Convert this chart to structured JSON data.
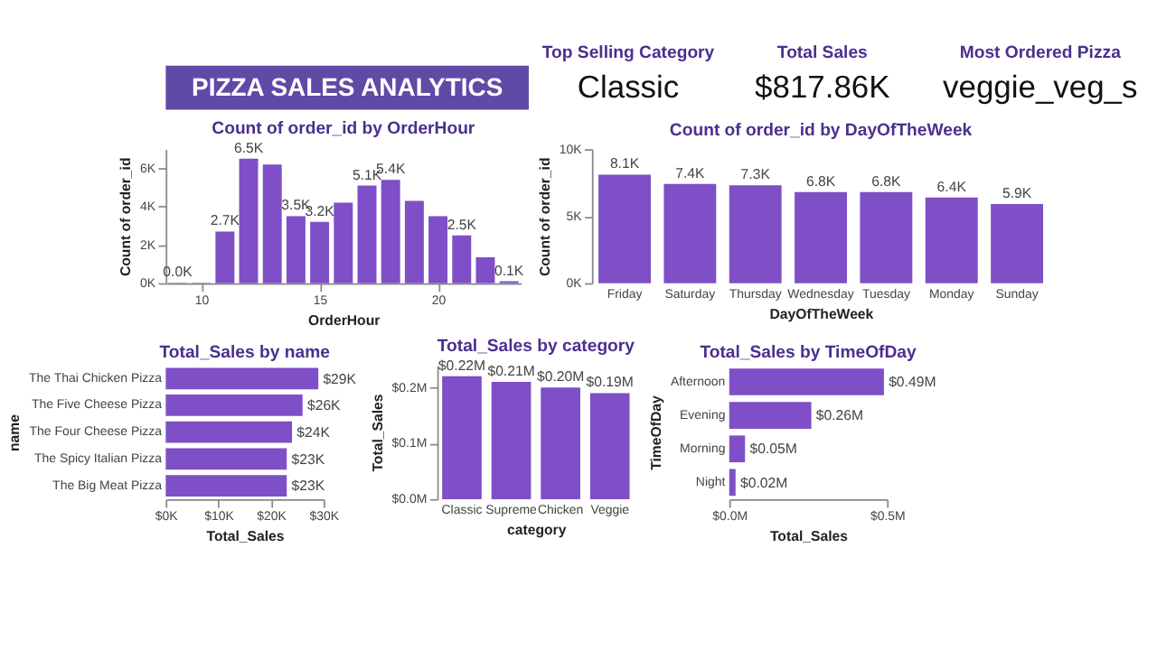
{
  "chart_data": [
    {
      "type": "other",
      "title": "PIZZA SALES ANALYTICS"
    },
    {
      "type": "other",
      "title": "Top Selling Category",
      "annotations": [
        "Classic"
      ]
    },
    {
      "type": "other",
      "title": "Total Sales",
      "annotations": [
        "$817.86K"
      ]
    },
    {
      "type": "other",
      "title": "Most Ordered Pizza",
      "annotations": [
        "veggie_veg_s"
      ]
    },
    {
      "type": "bar",
      "title": "Count of order_id by OrderHour",
      "xlabel": "OrderHour",
      "ylabel": "Count of order_id",
      "x": [
        9,
        10,
        11,
        12,
        13,
        14,
        15,
        16,
        17,
        18,
        19,
        20,
        21,
        22,
        23
      ],
      "values": [
        20,
        20,
        2700,
        6500,
        6200,
        3500,
        3200,
        4200,
        5100,
        5400,
        4300,
        3500,
        2500,
        1350,
        100
      ],
      "value_labels": [
        "0.0K",
        null,
        "2.7K",
        "6.5K",
        null,
        "3.5K",
        "3.2K",
        null,
        "5.1K",
        "5.4K",
        null,
        null,
        "2.5K",
        null,
        "0.1K"
      ],
      "color": "#7e4fc6",
      "xlim": [
        8.5,
        23.5
      ],
      "xticks": [
        10,
        15,
        20
      ],
      "ylim": [
        0,
        7000
      ],
      "yticks": [
        {
          "value": 0,
          "label": "0K"
        },
        {
          "value": 2000,
          "label": "2K"
        },
        {
          "value": 4000,
          "label": "4K"
        },
        {
          "value": 6000,
          "label": "6K"
        }
      ]
    },
    {
      "type": "bar",
      "title": "Count of order_id by DayOfTheWeek",
      "xlabel": "DayOfTheWeek",
      "ylabel": "Count of order_id",
      "categories": [
        "Friday",
        "Saturday",
        "Thursday",
        "Wednesday",
        "Tuesday",
        "Monday",
        "Sunday"
      ],
      "values": [
        8100,
        7400,
        7300,
        6800,
        6800,
        6400,
        5900
      ],
      "value_labels": [
        "8.1K",
        "7.4K",
        "7.3K",
        "6.8K",
        "6.8K",
        "6.4K",
        "5.9K"
      ],
      "color": "#7e4fc6",
      "ylim": [
        0,
        10000
      ],
      "yticks": [
        {
          "value": 0,
          "label": "0K"
        },
        {
          "value": 5000,
          "label": "5K"
        },
        {
          "value": 10000,
          "label": "10K"
        }
      ]
    },
    {
      "type": "bar",
      "orientation": "horizontal",
      "title": "Total_Sales by name",
      "xlabel": "Total_Sales",
      "ylabel": "name",
      "categories": [
        "The Thai Chicken Pizza",
        "The Five Cheese Pizza",
        "The Four Cheese Pizza",
        "The Spicy Italian Pizza",
        "The Big Meat Pizza"
      ],
      "values": [
        29000,
        26000,
        24000,
        23000,
        23000
      ],
      "value_labels": [
        "$29K",
        "$26K",
        "$24K",
        "$23K",
        "$23K"
      ],
      "color": "#7e4fc6",
      "xlim": [
        0,
        30000
      ],
      "xticks": [
        {
          "value": 0,
          "label": "$0K"
        },
        {
          "value": 10000,
          "label": "$10K"
        },
        {
          "value": 20000,
          "label": "$20K"
        },
        {
          "value": 30000,
          "label": "$30K"
        }
      ]
    },
    {
      "type": "bar",
      "title": "Total_Sales by category",
      "xlabel": "category",
      "ylabel": "Total_Sales",
      "categories": [
        "Classic",
        "Supreme",
        "Chicken",
        "Veggie"
      ],
      "values": [
        220000,
        210000,
        200000,
        190000
      ],
      "value_labels": [
        "$0.22M",
        "$0.21M",
        "$0.20M",
        "$0.19M"
      ],
      "color": "#7e4fc6",
      "ylim": [
        0,
        240000
      ],
      "yticks": [
        {
          "value": 0,
          "label": "$0.0M"
        },
        {
          "value": 100000,
          "label": "$0.1M"
        },
        {
          "value": 200000,
          "label": "$0.2M"
        }
      ]
    },
    {
      "type": "bar",
      "orientation": "horizontal",
      "title": "Total_Sales by TimeOfDay",
      "xlabel": "Total_Sales",
      "ylabel": "TimeOfDay",
      "categories": [
        "Afternoon",
        "Evening",
        "Morning",
        "Night"
      ],
      "values": [
        490000,
        260000,
        50000,
        20000
      ],
      "value_labels": [
        "$0.49M",
        "$0.26M",
        "$0.05M",
        "$0.02M"
      ],
      "color": "#7e4fc6",
      "xlim": [
        0,
        500000
      ],
      "xticks": [
        {
          "value": 0,
          "label": "$0.0M"
        },
        {
          "value": 500000,
          "label": "$0.5M"
        }
      ]
    }
  ]
}
